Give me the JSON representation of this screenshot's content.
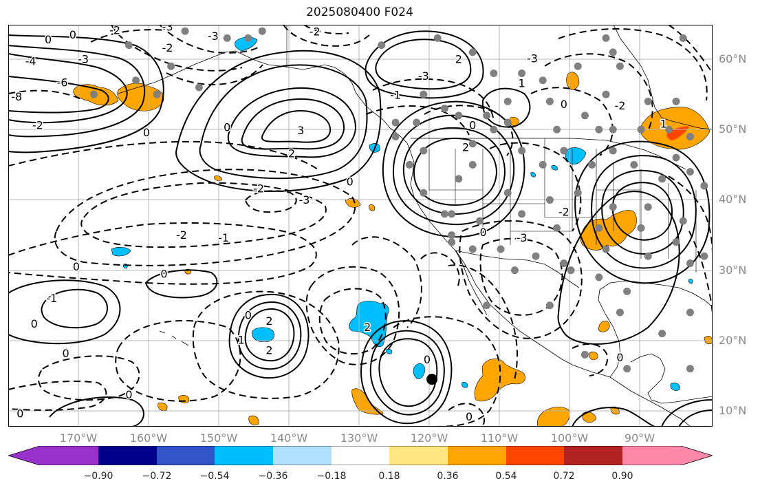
{
  "title": "2025080400 F024",
  "lat_labels": [
    "60°N",
    "50°N",
    "40°N",
    "30°N",
    "20°N",
    "10°N"
  ],
  "lon_labels": [
    "170°W",
    "160°W",
    "150°W",
    "140°W",
    "130°W",
    "120°W",
    "110°W",
    "100°W",
    "90°W"
  ],
  "contour_labels": [
    {
      "text": "-3",
      "lon": -158.5,
      "lat": 64.5
    },
    {
      "text": "-3",
      "lon": -152,
      "lat": 63.2
    },
    {
      "text": "-2",
      "lon": -166,
      "lat": 64
    },
    {
      "text": "-2",
      "lon": -158.5,
      "lat": 61.5
    },
    {
      "text": "-3",
      "lon": -170.5,
      "lat": 59.9
    },
    {
      "text": "0",
      "lon": -175.5,
      "lat": 62.7
    },
    {
      "text": "0",
      "lon": -172,
      "lat": 63.4
    },
    {
      "text": "-4",
      "lon": -178,
      "lat": 59.6
    },
    {
      "text": "-6",
      "lon": -173.5,
      "lat": 56.6
    },
    {
      "text": "-8",
      "lon": -180,
      "lat": 54.6
    },
    {
      "text": "-2",
      "lon": -177,
      "lat": 50.5
    },
    {
      "text": "0",
      "lon": -161.5,
      "lat": 49.5
    },
    {
      "text": "3",
      "lon": -139.5,
      "lat": 49.8
    },
    {
      "text": "0",
      "lon": -150,
      "lat": 50.2
    },
    {
      "text": "2",
      "lon": -140.8,
      "lat": 46.5
    },
    {
      "text": "-2",
      "lon": -137.5,
      "lat": 63.8
    },
    {
      "text": "-2",
      "lon": -145.5,
      "lat": 41.5
    },
    {
      "text": "-3",
      "lon": -139,
      "lat": 39.9
    },
    {
      "text": "0",
      "lon": -132.5,
      "lat": 42.5
    },
    {
      "text": "-1",
      "lon": -150.5,
      "lat": 34.5
    },
    {
      "text": "-2",
      "lon": -156.5,
      "lat": 34.9
    },
    {
      "text": "0",
      "lon": -171.5,
      "lat": 30.4
    },
    {
      "text": "0",
      "lon": -159,
      "lat": 29.4
    },
    {
      "text": "0",
      "lon": -147,
      "lat": 23.5
    },
    {
      "text": "-1",
      "lon": -175,
      "lat": 25.9
    },
    {
      "text": "0",
      "lon": -177.5,
      "lat": 22.3
    },
    {
      "text": "0",
      "lon": -173,
      "lat": 18.1
    },
    {
      "text": "0",
      "lon": -164,
      "lat": 12.2
    },
    {
      "text": "0",
      "lon": -179.5,
      "lat": 9.5
    },
    {
      "text": "2",
      "lon": -144,
      "lat": 22.7
    },
    {
      "text": "1",
      "lon": -148,
      "lat": 20
    },
    {
      "text": "2",
      "lon": -144,
      "lat": 18.5
    },
    {
      "text": "0",
      "lon": -121.5,
      "lat": 17.2
    },
    {
      "text": "2",
      "lon": -117,
      "lat": 59.9
    },
    {
      "text": "-3",
      "lon": -122,
      "lat": 57.5
    },
    {
      "text": "-1",
      "lon": -126,
      "lat": 54.8
    },
    {
      "text": "1",
      "lon": -108,
      "lat": 56.5
    },
    {
      "text": "0",
      "lon": -115,
      "lat": 50.5
    },
    {
      "text": "2",
      "lon": -116,
      "lat": 47.4
    },
    {
      "text": "0",
      "lon": -113.5,
      "lat": 35.3
    },
    {
      "text": "-3",
      "lon": -108,
      "lat": 34.5
    },
    {
      "text": "-2",
      "lon": -102,
      "lat": 38.2
    },
    {
      "text": "1",
      "lon": -87.8,
      "lat": 50.7
    },
    {
      "text": "-2",
      "lon": -94,
      "lat": 53.3
    },
    {
      "text": "0",
      "lon": -102,
      "lat": 53.5
    },
    {
      "text": "2",
      "lon": -130,
      "lat": 21.8
    },
    {
      "text": "0",
      "lon": -94,
      "lat": 17.5
    },
    {
      "text": "0",
      "lon": -115.5,
      "lat": 9.1
    },
    {
      "text": "-3",
      "lon": -106.5,
      "lat": 60
    }
  ],
  "colorbar": {
    "tick_labels": [
      "−0.90",
      "−0.72",
      "−0.54",
      "−0.36",
      "−0.18",
      "0.18",
      "0.36",
      "0.54",
      "0.72",
      "0.90"
    ],
    "colors": [
      "#9932cc",
      "#00008b",
      "#3353c8",
      "#00bfff",
      "#b0e0ff",
      "#ffffff",
      "#ffe680",
      "#ffa500",
      "#ff4500",
      "#b22222",
      "#ff88aa"
    ]
  },
  "colors": {
    "positive_fill": "#ffa500",
    "negative_fill": "#00bfff",
    "station_dot": "#808080",
    "contour": "#000000",
    "grid": "#b5b5b5"
  },
  "marker": {
    "name": "filled-black-circle",
    "lon": -120.8,
    "lat": 14.5
  }
}
